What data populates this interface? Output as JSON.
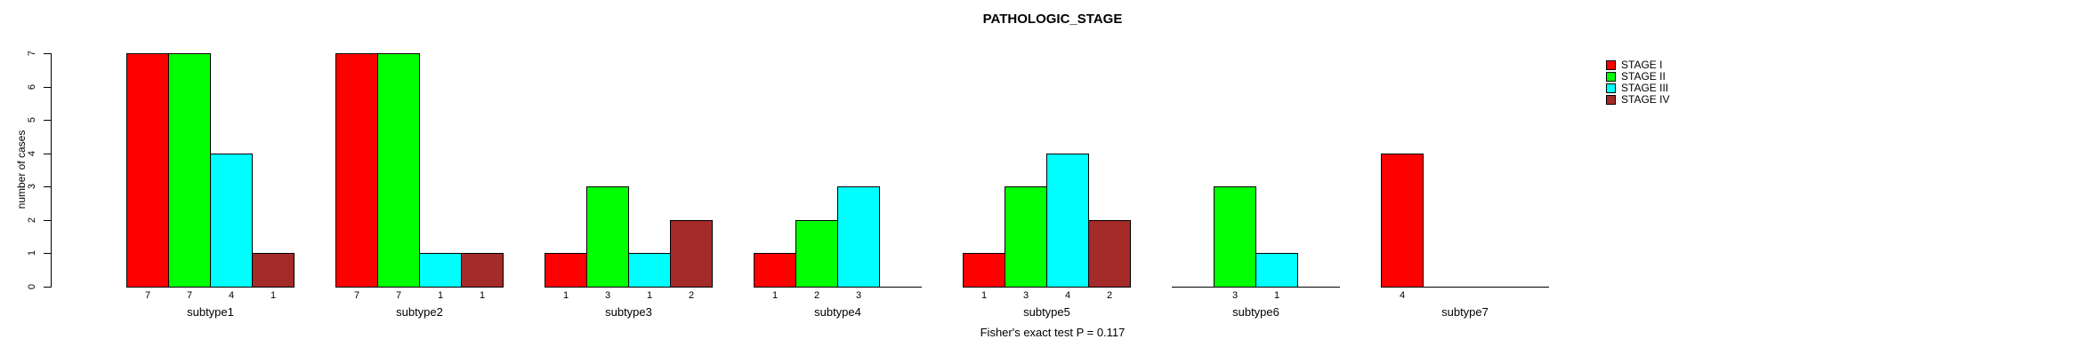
{
  "chart_data": {
    "type": "bar",
    "title": "PATHOLOGIC_STAGE",
    "ylabel": "number of cases",
    "xlabel": "",
    "footnote": "Fisher's exact test P = 0.117",
    "categories": [
      "subtype1",
      "subtype2",
      "subtype3",
      "subtype4",
      "subtype5",
      "subtype6",
      "subtype7"
    ],
    "series": [
      {
        "name": "STAGE I",
        "color": "#FF0000",
        "values": [
          7,
          7,
          1,
          1,
          1,
          0,
          4
        ]
      },
      {
        "name": "STAGE II",
        "color": "#00FF00",
        "values": [
          7,
          7,
          3,
          2,
          3,
          3,
          0
        ]
      },
      {
        "name": "STAGE III",
        "color": "#00FFFF",
        "values": [
          4,
          1,
          1,
          3,
          4,
          1,
          0
        ]
      },
      {
        "name": "STAGE IV",
        "color": "#A52A2A",
        "values": [
          1,
          1,
          2,
          0,
          2,
          0,
          0
        ]
      }
    ],
    "bar_value_labels": [
      [
        "7",
        "7",
        "4",
        "1"
      ],
      [
        "7",
        "7",
        "1",
        "1"
      ],
      [
        "1",
        "3",
        "1",
        "2"
      ],
      [
        "1",
        "2",
        "3",
        ""
      ],
      [
        "1",
        "3",
        "4",
        "2"
      ],
      [
        "",
        "3",
        "1",
        ""
      ],
      [
        "4",
        "",
        "",
        ""
      ]
    ],
    "ylim": [
      0,
      7
    ],
    "yticks": [
      0,
      1,
      2,
      3,
      4,
      5,
      6,
      7
    ],
    "legend_entries": [
      "STAGE I",
      "STAGE II",
      "STAGE III",
      "STAGE IV"
    ],
    "legend_position": "top-right",
    "grid": false,
    "axis_color": "#000000",
    "background_color": "#FFFFFF"
  }
}
